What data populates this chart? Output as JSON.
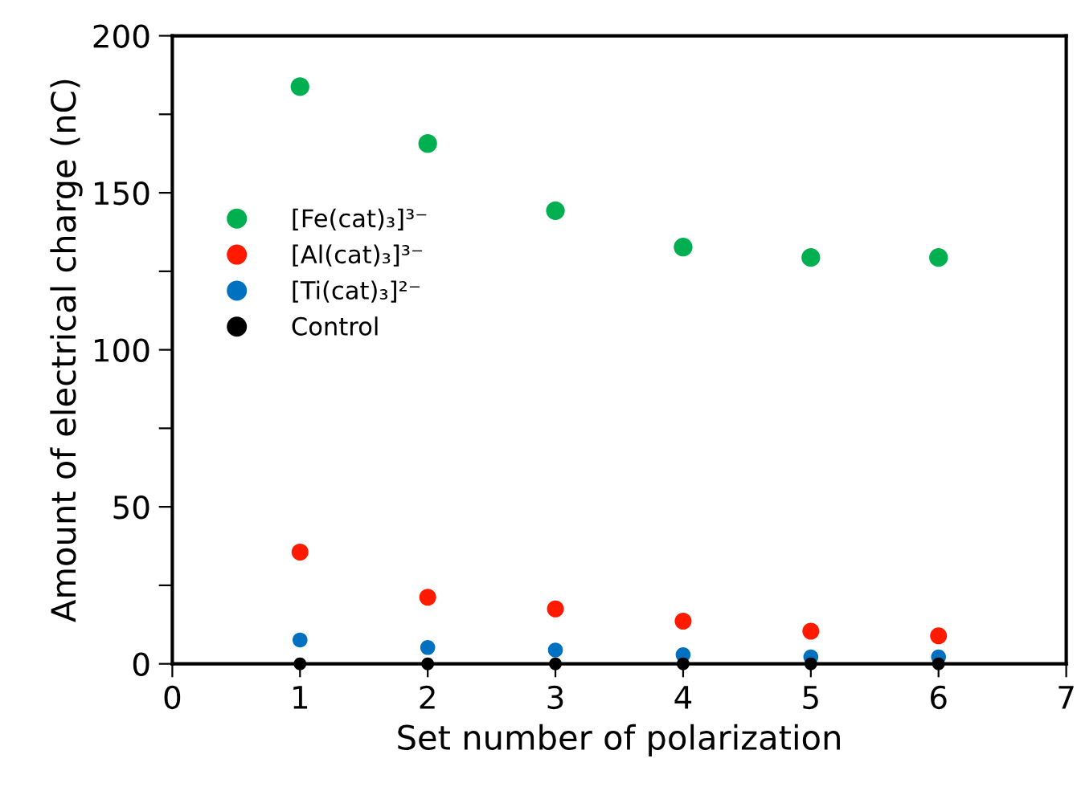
{
  "chart_data": {
    "type": "scatter",
    "xlabel": "Set number of polarization",
    "ylabel": "Amount of electrical charge (nC)",
    "x": [
      1,
      2,
      3,
      4,
      5,
      6
    ],
    "series": [
      {
        "name": "[Fe(cat)₃]³⁻",
        "color": "#00b050",
        "values": [
          183.8,
          165.7,
          144.3,
          132.7,
          129.4,
          129.4
        ]
      },
      {
        "name": "[Al(cat)₃]³⁻",
        "color": "#ff1a00",
        "values": [
          35.6,
          21.2,
          17.5,
          13.6,
          10.4,
          8.9
        ]
      },
      {
        "name": "[Ti(cat)₃]²⁻",
        "color": "#0070c0",
        "values": [
          7.6,
          5.2,
          4.4,
          2.9,
          2.2,
          2.2
        ]
      },
      {
        "name": "Control",
        "color": "#000000",
        "values": [
          0,
          0,
          0,
          0,
          0,
          0
        ]
      }
    ],
    "xlim": [
      0,
      7
    ],
    "xticks": [
      0,
      1,
      2,
      3,
      4,
      5,
      6,
      7
    ],
    "ylim": [
      0,
      200
    ],
    "yticks": [
      0,
      {
        "value": 25,
        "label": null
      },
      50,
      {
        "value": 75,
        "label": null
      },
      100,
      {
        "value": 125,
        "label": null
      },
      150,
      {
        "value": 175,
        "label": null
      },
      200
    ],
    "grid": false,
    "legend": "left",
    "marker": "circle"
  }
}
